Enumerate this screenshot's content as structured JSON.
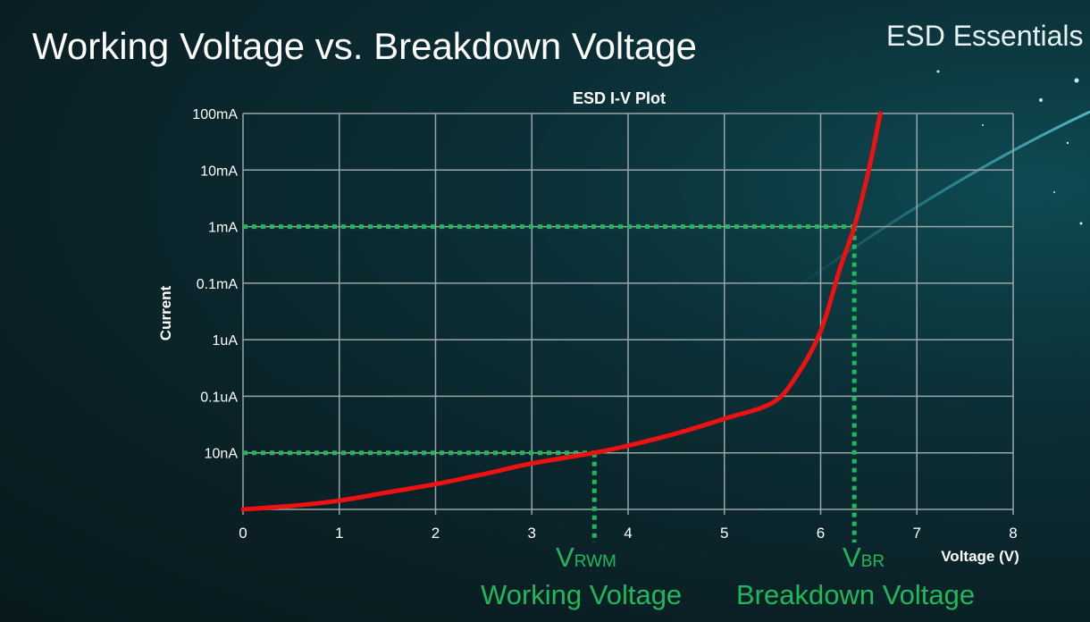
{
  "slide": {
    "title": "Working Voltage vs. Breakdown Voltage",
    "brand": "ESD Essentials"
  },
  "annotations": {
    "vrwm_symbol": "V",
    "vrwm_sub": "RWM",
    "vrwm_label": "Working Voltage",
    "vbr_symbol": "V",
    "vbr_sub": "BR",
    "vbr_label": "Breakdown Voltage"
  },
  "colors": {
    "curve": "#ee1111",
    "marker": "#1fb85a",
    "grid": "#9aa5a8"
  },
  "chart_data": {
    "type": "line",
    "title": "ESD I-V Plot",
    "xlabel": "Voltage (V)",
    "ylabel": "Current",
    "xlim": [
      0,
      8
    ],
    "x_ticks": [
      "0",
      "1",
      "2",
      "3",
      "4",
      "5",
      "6",
      "7",
      "8"
    ],
    "y_scale": "log",
    "y_ticks": [
      {
        "label": "100mA",
        "value": 0.1
      },
      {
        "label": "10mA",
        "value": 0.01
      },
      {
        "label": "1mA",
        "value": 0.001
      },
      {
        "label": "0.1mA",
        "value": 0.0001
      },
      {
        "label": "1uA",
        "value": 1e-06
      },
      {
        "label": "0.1uA",
        "value": 1e-07
      },
      {
        "label": "10nA",
        "value": 1e-08
      },
      {
        "label": "",
        "value": 1e-09
      }
    ],
    "grid": true,
    "series": [
      {
        "x": [
          0,
          0.5,
          1,
          1.5,
          2,
          2.5,
          3,
          3.65,
          4,
          4.5,
          5,
          5.5,
          5.75,
          6.0,
          6.2,
          6.35,
          6.5,
          6.62
        ],
        "y": [
          1e-09,
          1.15e-09,
          1.43e-09,
          2e-09,
          2.8e-09,
          4.2e-09,
          6.5e-09,
          1e-08,
          1.34e-08,
          2.2e-08,
          4e-08,
          7.7e-08,
          2.3e-07,
          2e-06,
          0.00018,
          0.001,
          0.01,
          0.1
        ]
      }
    ],
    "markers": [
      {
        "name": "VRWM",
        "x": 3.65,
        "y": 1e-08
      },
      {
        "name": "VBR",
        "x": 6.35,
        "y": 0.001
      }
    ]
  }
}
